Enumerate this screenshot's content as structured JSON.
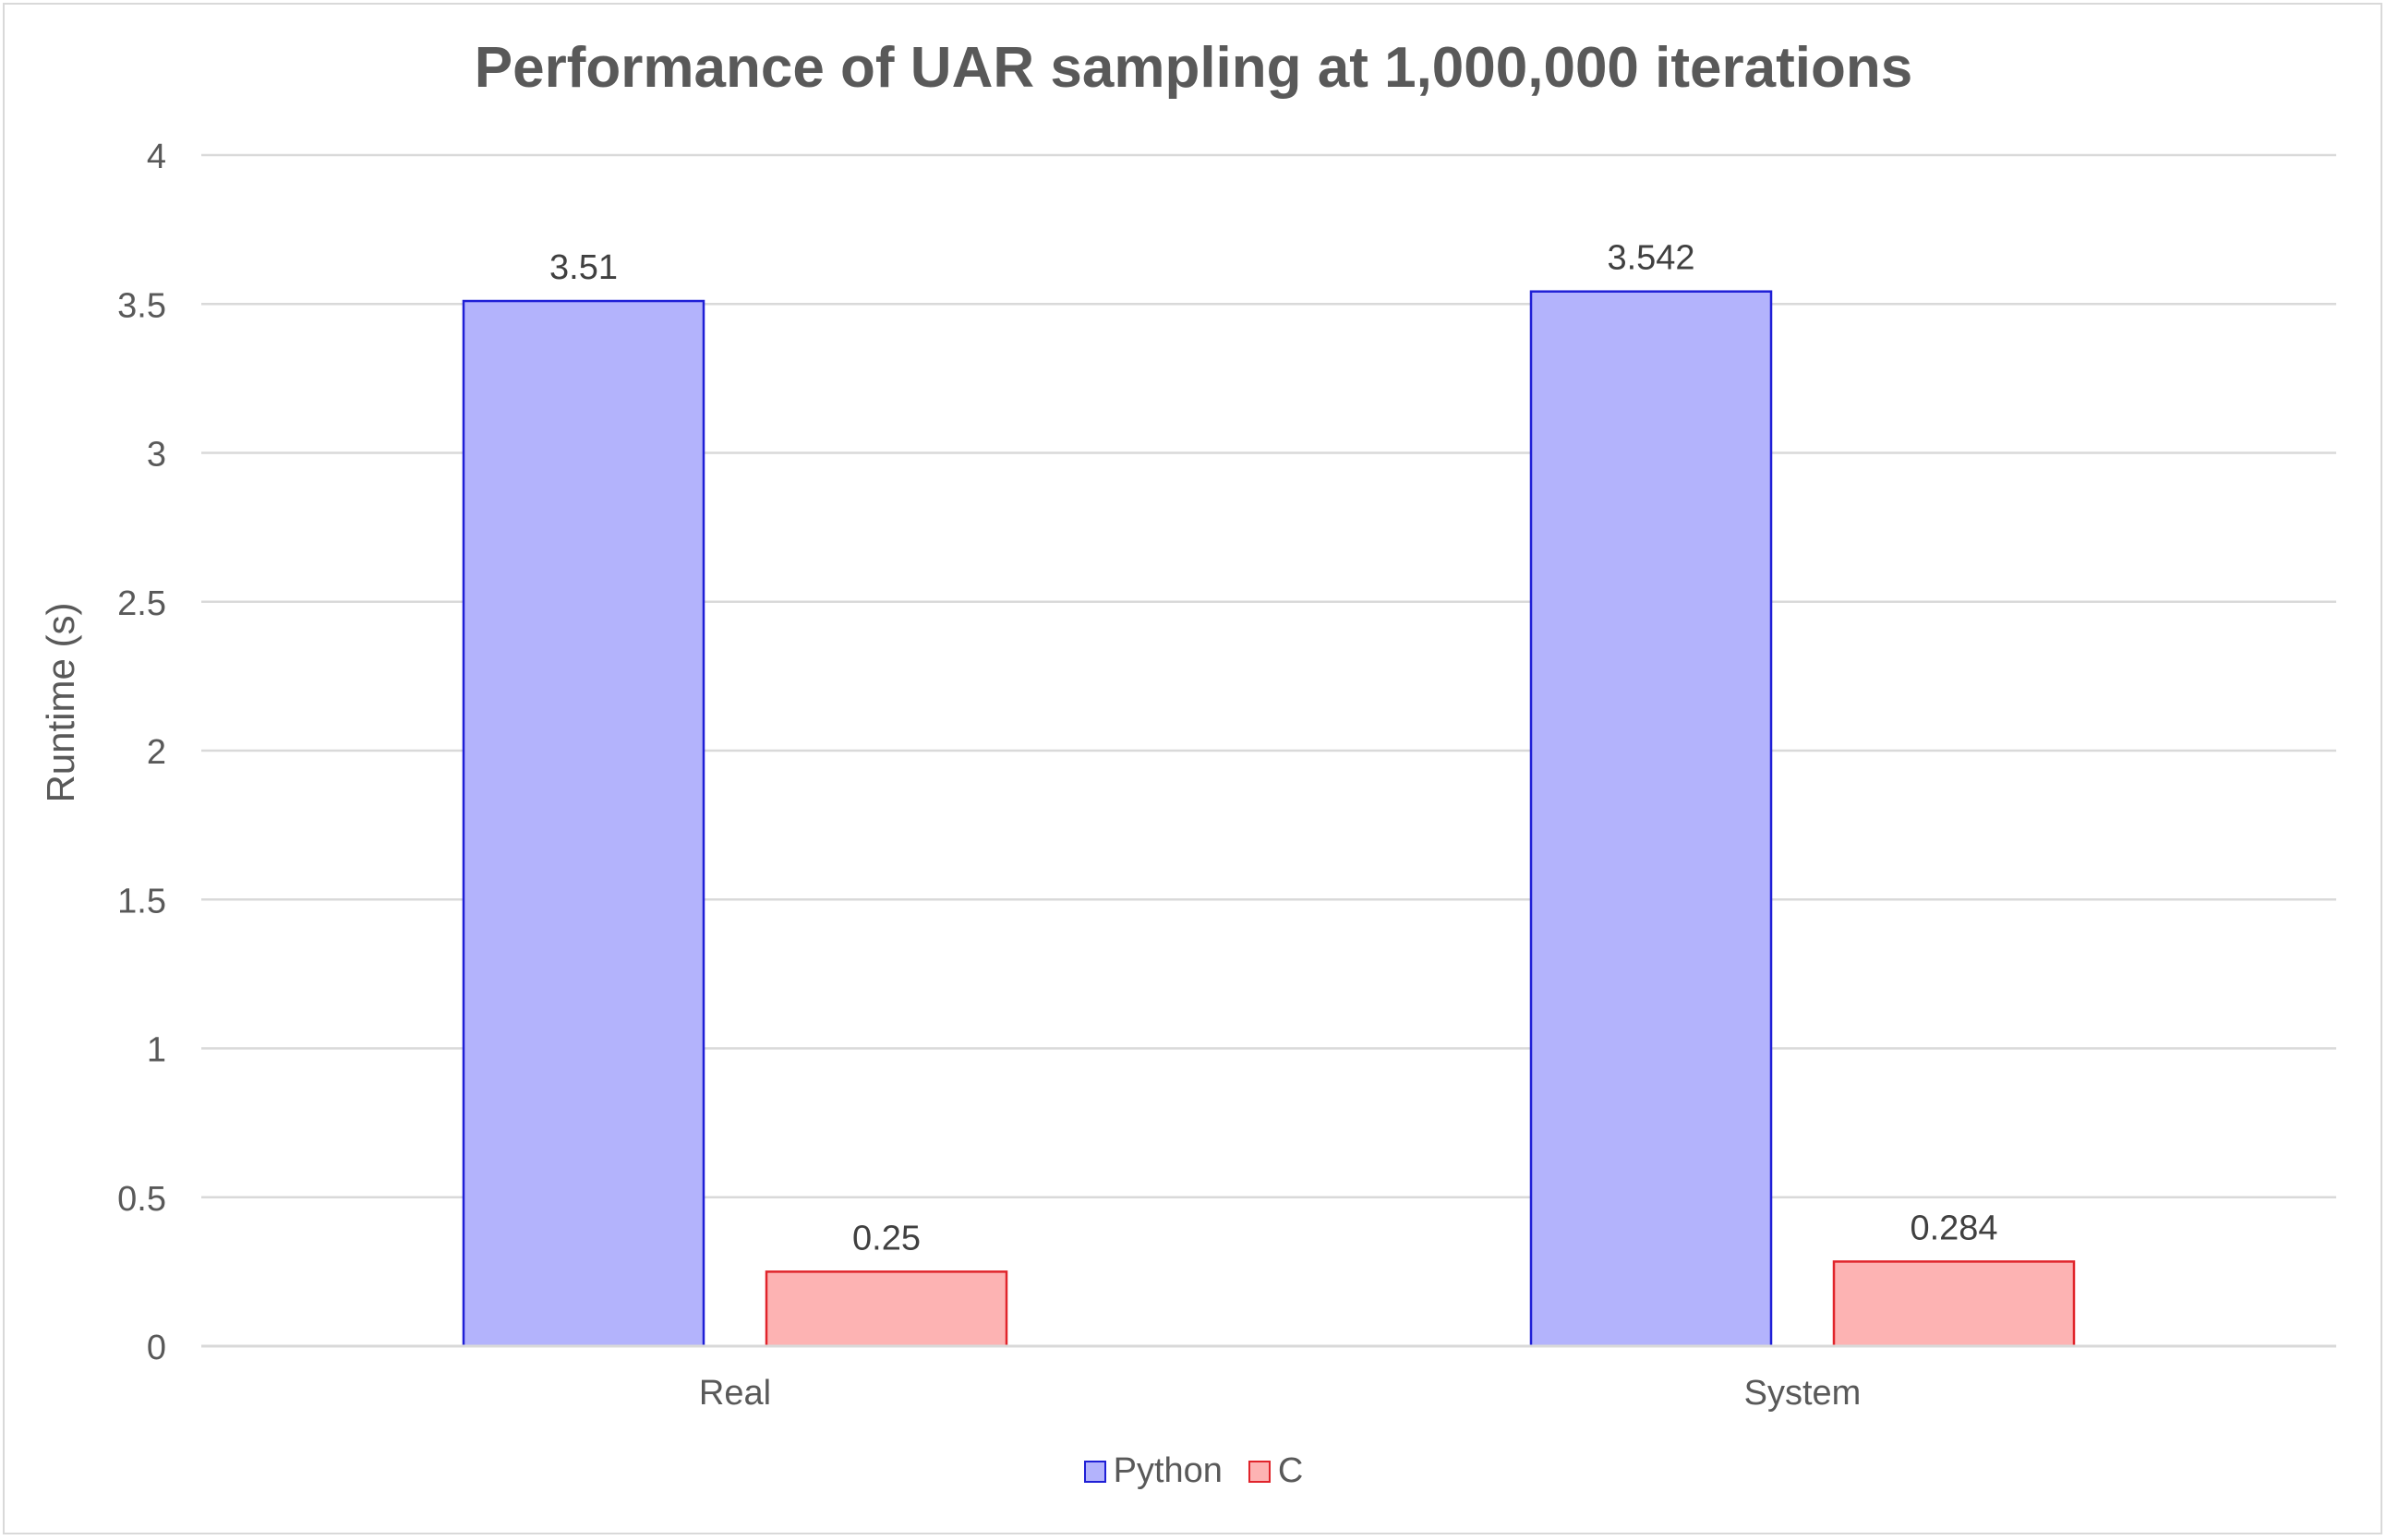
{
  "chart_data": {
    "type": "bar",
    "title": "Performance of UAR sampling at 1,000,000 iterations",
    "xlabel": "",
    "ylabel": "Runtime (s)",
    "categories": [
      "Real",
      "System"
    ],
    "series": [
      {
        "name": "Python",
        "values": [
          3.51,
          3.542
        ],
        "labels": [
          "3.51",
          "3.542"
        ],
        "fill": "#b3b3fc",
        "stroke": "#1f1fd6"
      },
      {
        "name": "C",
        "values": [
          0.25,
          0.284
        ],
        "labels": [
          "0.25",
          "0.284"
        ],
        "fill": "#fdb3b3",
        "stroke": "#e0242b"
      }
    ],
    "ylim": [
      0,
      4
    ],
    "yticks": [
      "0",
      "0.5",
      "1",
      "1.5",
      "2",
      "2.5",
      "3",
      "3.5",
      "4"
    ],
    "grid": true,
    "legend_position": "bottom"
  }
}
